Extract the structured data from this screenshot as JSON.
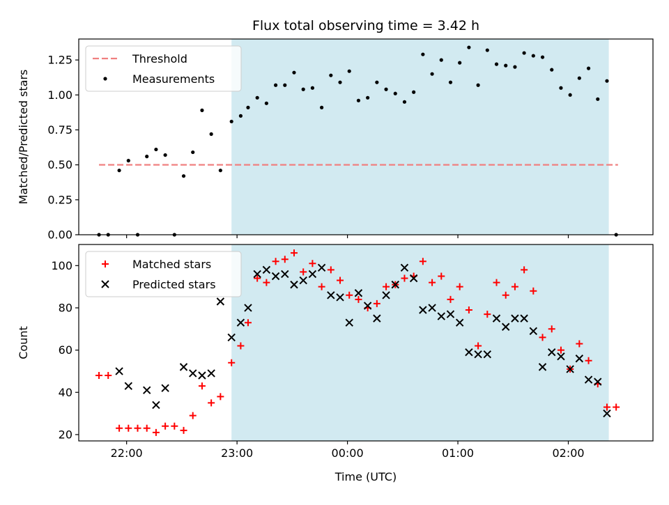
{
  "chart_data": [
    {
      "type": "scatter",
      "title": "Flux total observing time = 3.42 h",
      "ylabel": "Matched/Predicted stars",
      "xlabel": "",
      "xlim": [
        "21:34",
        "02:46"
      ],
      "ylim": [
        0,
        1.4
      ],
      "yticks": [
        "0.00",
        "0.25",
        "0.50",
        "0.75",
        "1.00",
        "1.25"
      ],
      "legend": {
        "position": "top-left",
        "items": [
          "Threshold",
          "Measurements"
        ]
      },
      "shaded_region": {
        "from": "22:57",
        "to": "02:22",
        "color": "#add8e6"
      },
      "threshold": {
        "name": "Threshold",
        "y": 0.5,
        "x_from": "21:45",
        "x_to": "02:27",
        "color": "#f08080"
      },
      "series": [
        {
          "name": "Measurements",
          "color": "#000000",
          "x": [
            "21:45",
            "21:50",
            "21:56",
            "22:01",
            "22:06",
            "22:11",
            "22:16",
            "22:21",
            "22:26",
            "22:31",
            "22:36",
            "22:41",
            "22:46",
            "22:51",
            "22:57",
            "23:02",
            "23:06",
            "23:11",
            "23:16",
            "23:21",
            "23:26",
            "23:31",
            "23:36",
            "23:41",
            "23:46",
            "23:51",
            "23:56",
            "00:01",
            "00:06",
            "00:11",
            "00:16",
            "00:21",
            "00:26",
            "00:31",
            "00:36",
            "00:41",
            "00:46",
            "00:51",
            "00:56",
            "01:01",
            "01:06",
            "01:11",
            "01:16",
            "01:21",
            "01:26",
            "01:31",
            "01:36",
            "01:41",
            "01:46",
            "01:51",
            "01:56",
            "02:01",
            "02:06",
            "02:11",
            "02:16",
            "02:21",
            "02:26"
          ],
          "y": [
            0.0,
            0.0,
            0.46,
            0.53,
            0.0,
            0.56,
            0.61,
            0.57,
            0.0,
            0.42,
            0.59,
            0.89,
            0.72,
            0.46,
            0.81,
            0.85,
            0.91,
            0.98,
            0.94,
            1.07,
            1.07,
            1.16,
            1.04,
            1.05,
            0.91,
            1.14,
            1.09,
            1.17,
            0.96,
            0.98,
            1.09,
            1.04,
            1.01,
            0.95,
            1.02,
            1.29,
            1.15,
            1.25,
            1.09,
            1.23,
            1.34,
            1.07,
            1.32,
            1.22,
            1.21,
            1.2,
            1.3,
            1.28,
            1.27,
            1.18,
            1.05,
            1.0,
            1.12,
            1.19,
            0.97,
            1.1,
            0.0
          ]
        }
      ]
    },
    {
      "type": "scatter",
      "title": "",
      "ylabel": "Count",
      "xlabel": "Time (UTC)",
      "xticks": [
        "22:00",
        "23:00",
        "00:00",
        "01:00",
        "02:00"
      ],
      "xlim": [
        "21:34",
        "02:46"
      ],
      "ylim": [
        17,
        110
      ],
      "yticks": [
        "20",
        "40",
        "60",
        "80",
        "100"
      ],
      "legend": {
        "position": "top-left",
        "items": [
          "Matched stars",
          "Predicted stars"
        ]
      },
      "shaded_region": {
        "from": "22:57",
        "to": "02:22",
        "color": "#add8e6"
      },
      "series": [
        {
          "name": "Matched stars",
          "marker": "+",
          "color": "#ff0000",
          "x": [
            "21:45",
            "21:50",
            "21:56",
            "22:01",
            "22:06",
            "22:11",
            "22:16",
            "22:21",
            "22:26",
            "22:31",
            "22:36",
            "22:41",
            "22:46",
            "22:51",
            "22:57",
            "23:02",
            "23:06",
            "23:11",
            "23:16",
            "23:21",
            "23:26",
            "23:31",
            "23:36",
            "23:41",
            "23:46",
            "23:51",
            "23:56",
            "00:01",
            "00:06",
            "00:11",
            "00:16",
            "00:21",
            "00:26",
            "00:31",
            "00:36",
            "00:41",
            "00:46",
            "00:51",
            "00:56",
            "01:01",
            "01:06",
            "01:11",
            "01:16",
            "01:21",
            "01:26",
            "01:31",
            "01:36",
            "01:41",
            "01:46",
            "01:51",
            "01:56",
            "02:01",
            "02:06",
            "02:11",
            "02:16",
            "02:21",
            "02:26"
          ],
          "y": [
            48,
            48,
            23,
            23,
            23,
            23,
            21,
            24,
            24,
            22,
            29,
            43,
            35,
            38,
            54,
            62,
            73,
            94,
            92,
            102,
            103,
            106,
            97,
            101,
            90,
            98,
            93,
            86,
            84,
            80,
            82,
            90,
            91,
            94,
            95,
            102,
            92,
            95,
            84,
            90,
            79,
            62,
            77,
            92,
            86,
            90,
            98,
            88,
            66,
            70,
            60,
            51,
            63,
            55,
            44,
            33,
            33
          ]
        },
        {
          "name": "Predicted stars",
          "marker": "x",
          "color": "#000000",
          "x": [
            "21:56",
            "22:01",
            "22:11",
            "22:16",
            "22:21",
            "22:31",
            "22:36",
            "22:41",
            "22:46",
            "22:51",
            "22:57",
            "23:02",
            "23:06",
            "23:11",
            "23:16",
            "23:21",
            "23:26",
            "23:31",
            "23:36",
            "23:41",
            "23:46",
            "23:51",
            "23:56",
            "00:01",
            "00:06",
            "00:11",
            "00:16",
            "00:21",
            "00:26",
            "00:31",
            "00:36",
            "00:41",
            "00:46",
            "00:51",
            "00:56",
            "01:01",
            "01:06",
            "01:11",
            "01:16",
            "01:21",
            "01:26",
            "01:31",
            "01:36",
            "01:41",
            "01:46",
            "01:51",
            "01:56",
            "02:01",
            "02:06",
            "02:11",
            "02:16",
            "02:21"
          ],
          "y": [
            50,
            43,
            41,
            34,
            42,
            52,
            49,
            48,
            49,
            83,
            66,
            73,
            80,
            96,
            98,
            95,
            96,
            91,
            93,
            96,
            99,
            86,
            85,
            73,
            87,
            81,
            75,
            86,
            91,
            99,
            94,
            79,
            80,
            76,
            77,
            73,
            59,
            58,
            58,
            75,
            71,
            75,
            75,
            69,
            52,
            59,
            57,
            51,
            56,
            46,
            45,
            30
          ]
        }
      ]
    }
  ]
}
